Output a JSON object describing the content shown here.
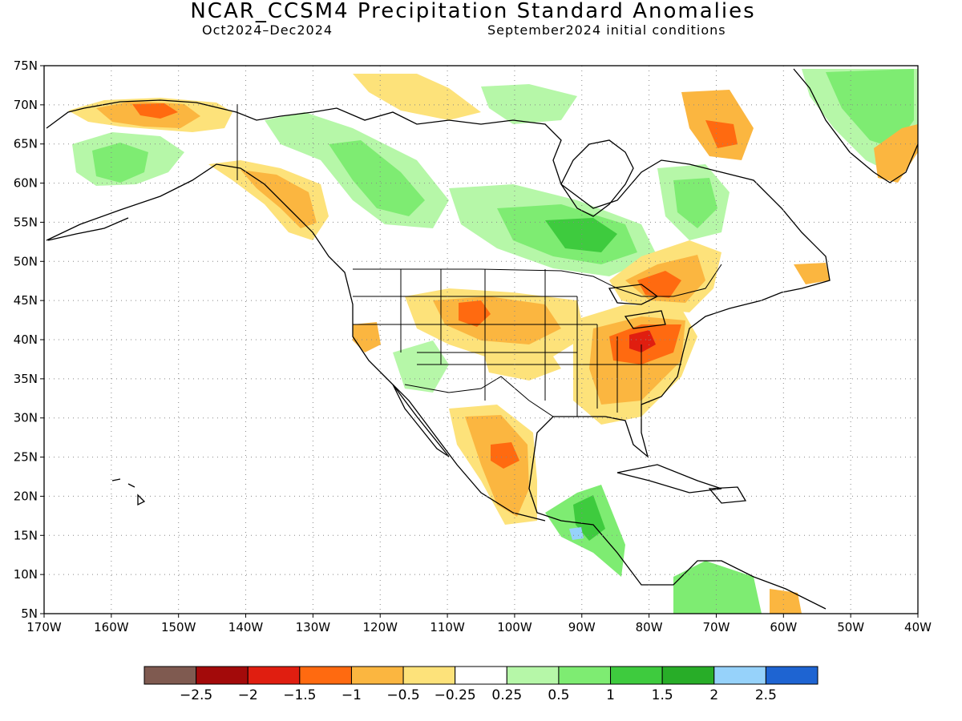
{
  "title": "NCAR_CCSM4 Precipitation Standard Anomalies",
  "subtitle_left": "Oct2024–Dec2024",
  "subtitle_right": "September2024 initial conditions",
  "map": {
    "lon_range": [
      -170,
      -40
    ],
    "lat_range": [
      5,
      75
    ],
    "lon_ticks": [
      "170W",
      "160W",
      "150W",
      "140W",
      "130W",
      "120W",
      "110W",
      "100W",
      "90W",
      "80W",
      "70W",
      "60W",
      "50W",
      "40W"
    ],
    "lat_ticks": [
      "75N",
      "70N",
      "65N",
      "60N",
      "55N",
      "50N",
      "45N",
      "40N",
      "35N",
      "30N",
      "25N",
      "20N",
      "15N",
      "10N",
      "5N"
    ],
    "grid": "dotted"
  },
  "colorbar": {
    "colors": [
      "#7f5a50",
      "#a30a0a",
      "#e01e10",
      "#ff6a10",
      "#fbb640",
      "#fde27a",
      "#ffffff",
      "#b6f7a8",
      "#7eec72",
      "#3ecb3e",
      "#28ad28",
      "#96d2fa",
      "#1e64d2"
    ],
    "labels": [
      "−2.5",
      "−2",
      "−1.5",
      "−1",
      "−0.5",
      "−0.25",
      "0.25",
      "0.5",
      "1",
      "1.5",
      "2",
      "2.5"
    ]
  },
  "anomaly_regions": [
    {
      "name": "Northern Alaska coast",
      "category": "-1",
      "color": "#fbb640"
    },
    {
      "name": "Western Alaska",
      "category": "0.5",
      "color": "#7eec72"
    },
    {
      "name": "Southeast Alaska / BC coast",
      "category": "-1",
      "color": "#fbb640"
    },
    {
      "name": "Central Canada / Hudson Bay south",
      "category": "1.5",
      "color": "#3ecb3e"
    },
    {
      "name": "Great Lakes / Ontario",
      "category": "-1.5",
      "color": "#ff6a10"
    },
    {
      "name": "Northern Plains",
      "category": "-1.5",
      "color": "#ff6a10"
    },
    {
      "name": "Ohio Valley",
      "category": "-2",
      "color": "#e01e10"
    },
    {
      "name": "Southeast US",
      "category": "-1",
      "color": "#fbb640"
    },
    {
      "name": "Northern Mexico",
      "category": "-1.5",
      "color": "#ff6a10"
    },
    {
      "name": "Central America",
      "category": "1.5",
      "color": "#3ecb3e"
    },
    {
      "name": "Southern Greenland",
      "category": "-1",
      "color": "#fbb640"
    },
    {
      "name": "Greenland",
      "category": "1",
      "color": "#7eec72"
    }
  ]
}
